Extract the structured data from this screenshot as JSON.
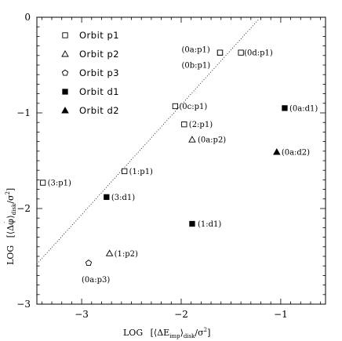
{
  "chart_data": {
    "type": "scatter",
    "title": "",
    "xlabel": {
      "prefix": "LOG",
      "open": "[",
      "angle_open": "⟨",
      "main": "ΔE",
      "sub1": "imp",
      "angle_close": "⟩",
      "sub2": "disk",
      "denominator": "/σ",
      "power": "2",
      "close": "]"
    },
    "ylabel": {
      "prefix": "LOG",
      "open": "[",
      "angle_open": "⟨",
      "main": "Δφ",
      "dot": "˙",
      "angle_close": "⟩",
      "sub": "disk",
      "denominator": "/σ",
      "power": "2",
      "close": "]"
    },
    "xlim": [
      -3.45,
      -0.55
    ],
    "ylim": [
      -3.0,
      0.0
    ],
    "xticks": [
      -3,
      -2,
      -1
    ],
    "xtick_labels": [
      "−3",
      "−2",
      "−1"
    ],
    "yticks": [
      0,
      -1,
      -2,
      -3
    ],
    "ytick_labels": [
      "0",
      "−1",
      "−2",
      "−3"
    ],
    "grid": false,
    "legend_position": "top-left",
    "diagonal_line": {
      "style": "dotted",
      "slope": 1,
      "from": [
        -3.45,
        -2.58
      ],
      "to": [
        -1.22,
        -0.02
      ]
    },
    "series": [
      {
        "name": "Orbit p1",
        "marker": "open-square",
        "points": [
          {
            "label": "(0a:p1)",
            "x": -1.61,
            "y": -0.37
          },
          {
            "label": "(0b:p1)",
            "x": -1.61,
            "y": -0.37
          },
          {
            "label": "(0d:p1)",
            "x": -1.4,
            "y": -0.37
          },
          {
            "label": "(0c:p1)",
            "x": -2.06,
            "y": -0.93
          },
          {
            "label": "(2:p1)",
            "x": -1.97,
            "y": -1.12
          },
          {
            "label": "(1:p1)",
            "x": -2.57,
            "y": -1.61
          },
          {
            "label": "(3:p1)",
            "x": -3.39,
            "y": -1.73
          }
        ]
      },
      {
        "name": "Orbit p2",
        "marker": "open-triangle",
        "points": [
          {
            "label": "(0a:p2)",
            "x": -1.89,
            "y": -1.28
          },
          {
            "label": "(1:p2)",
            "x": -2.72,
            "y": -2.47
          }
        ]
      },
      {
        "name": "Orbit p3",
        "marker": "open-pentagon",
        "points": [
          {
            "label": "(0a:p3)",
            "x": -2.93,
            "y": -2.57
          }
        ]
      },
      {
        "name": "Orbit d1",
        "marker": "filled-square",
        "points": [
          {
            "label": "(0a:d1)",
            "x": -0.96,
            "y": -0.95
          },
          {
            "label": "(3:d1)",
            "x": -2.75,
            "y": -1.88
          },
          {
            "label": "(1:d1)",
            "x": -1.89,
            "y": -2.16
          }
        ]
      },
      {
        "name": "Orbit d2",
        "marker": "filled-triangle",
        "points": [
          {
            "label": "(0a:d2)",
            "x": -1.04,
            "y": -1.41
          }
        ]
      }
    ]
  }
}
